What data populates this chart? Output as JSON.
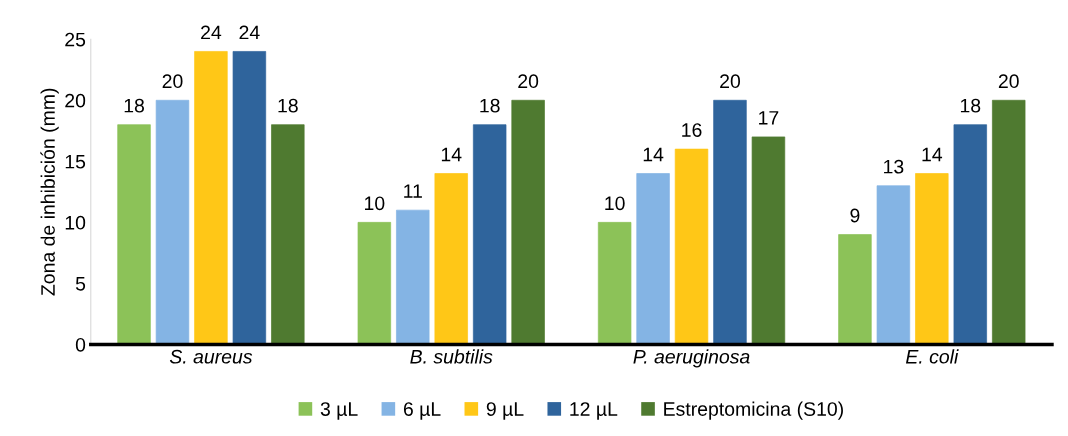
{
  "chart_data": {
    "type": "bar",
    "ylabel": "Zona de inhibición (mm)",
    "categories": [
      "S. aureus",
      "B. subtilis",
      "P. aeruginosa",
      "E. coli"
    ],
    "series": [
      {
        "name": "3 µL",
        "color": "#8cc258",
        "values": [
          18,
          10,
          10,
          9
        ]
      },
      {
        "name": "6 µL",
        "color": "#84b4e4",
        "values": [
          20,
          11,
          14,
          13
        ]
      },
      {
        "name": "9 µL",
        "color": "#ffc717",
        "values": [
          24,
          14,
          16,
          14
        ]
      },
      {
        "name": "12 µL",
        "color": "#2f649c",
        "values": [
          24,
          18,
          20,
          18
        ]
      },
      {
        "name": "Estreptomicina (S10)",
        "color": "#4f7a30",
        "values": [
          18,
          20,
          17,
          20
        ]
      }
    ],
    "ylim": [
      0,
      25
    ],
    "yticks": [
      0,
      5,
      10,
      15,
      20,
      25
    ],
    "data_labels": true,
    "grid": false,
    "legend": "bottom"
  }
}
